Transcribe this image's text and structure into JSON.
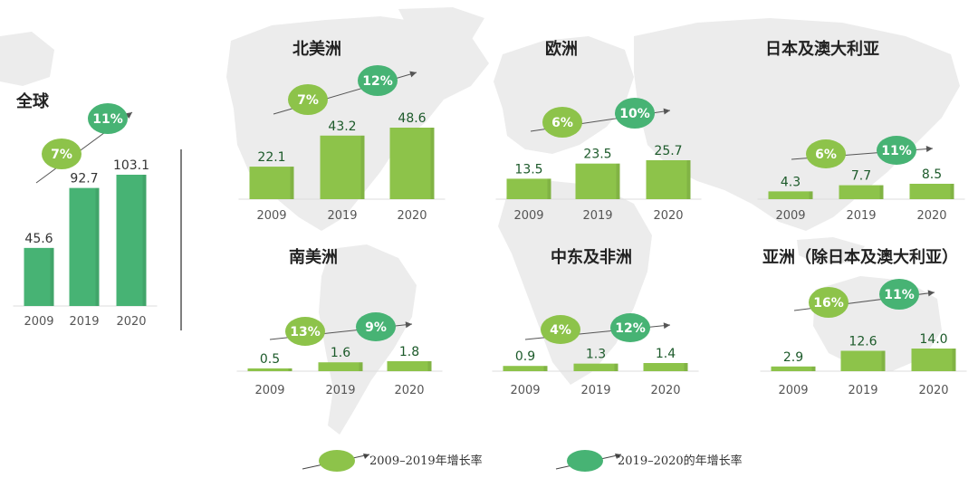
{
  "colors": {
    "bar_green": "#8dc34a",
    "bar_dark_green": "#47b374",
    "badge_light": "#8dc34a",
    "badge_dark": "#47b374",
    "value_dark": "#1c5a2a",
    "value_light": "#333333",
    "map": "#ececec"
  },
  "chart_data": [
    {
      "type": "bar",
      "title": "全球",
      "categories": [
        "2009",
        "2019",
        "2020"
      ],
      "values": [
        45.6,
        92.7,
        103.1
      ],
      "growth_2009_2019": "7%",
      "growth_2019_2020": "11%"
    },
    {
      "type": "bar",
      "title": "北美洲",
      "categories": [
        "2009",
        "2019",
        "2020"
      ],
      "values": [
        22.1,
        43.2,
        48.6
      ],
      "growth_2009_2019": "7%",
      "growth_2019_2020": "12%"
    },
    {
      "type": "bar",
      "title": "欧洲",
      "categories": [
        "2009",
        "2019",
        "2020"
      ],
      "values": [
        13.5,
        23.5,
        25.7
      ],
      "growth_2009_2019": "6%",
      "growth_2019_2020": "10%"
    },
    {
      "type": "bar",
      "title": "日本及澳大利亚",
      "categories": [
        "2009",
        "2019",
        "2020"
      ],
      "values": [
        4.3,
        7.7,
        8.5
      ],
      "growth_2009_2019": "6%",
      "growth_2019_2020": "11%"
    },
    {
      "type": "bar",
      "title": "南美洲",
      "categories": [
        "2009",
        "2019",
        "2020"
      ],
      "values": [
        0.5,
        1.6,
        1.8
      ],
      "growth_2009_2019": "13%",
      "growth_2019_2020": "9%"
    },
    {
      "type": "bar",
      "title": "中东及非洲",
      "categories": [
        "2009",
        "2019",
        "2020"
      ],
      "values": [
        0.9,
        1.3,
        1.4
      ],
      "growth_2009_2019": "4%",
      "growth_2019_2020": "12%"
    },
    {
      "type": "bar",
      "title": "亚洲（除日本及澳大利亚）",
      "categories": [
        "2009",
        "2019",
        "2020"
      ],
      "values": [
        2.9,
        12.6,
        14.0
      ],
      "growth_2009_2019": "16%",
      "growth_2019_2020": "11%"
    }
  ],
  "legend": {
    "light": "2009–2019年增长率",
    "dark": "2019–2020的年增长率"
  }
}
